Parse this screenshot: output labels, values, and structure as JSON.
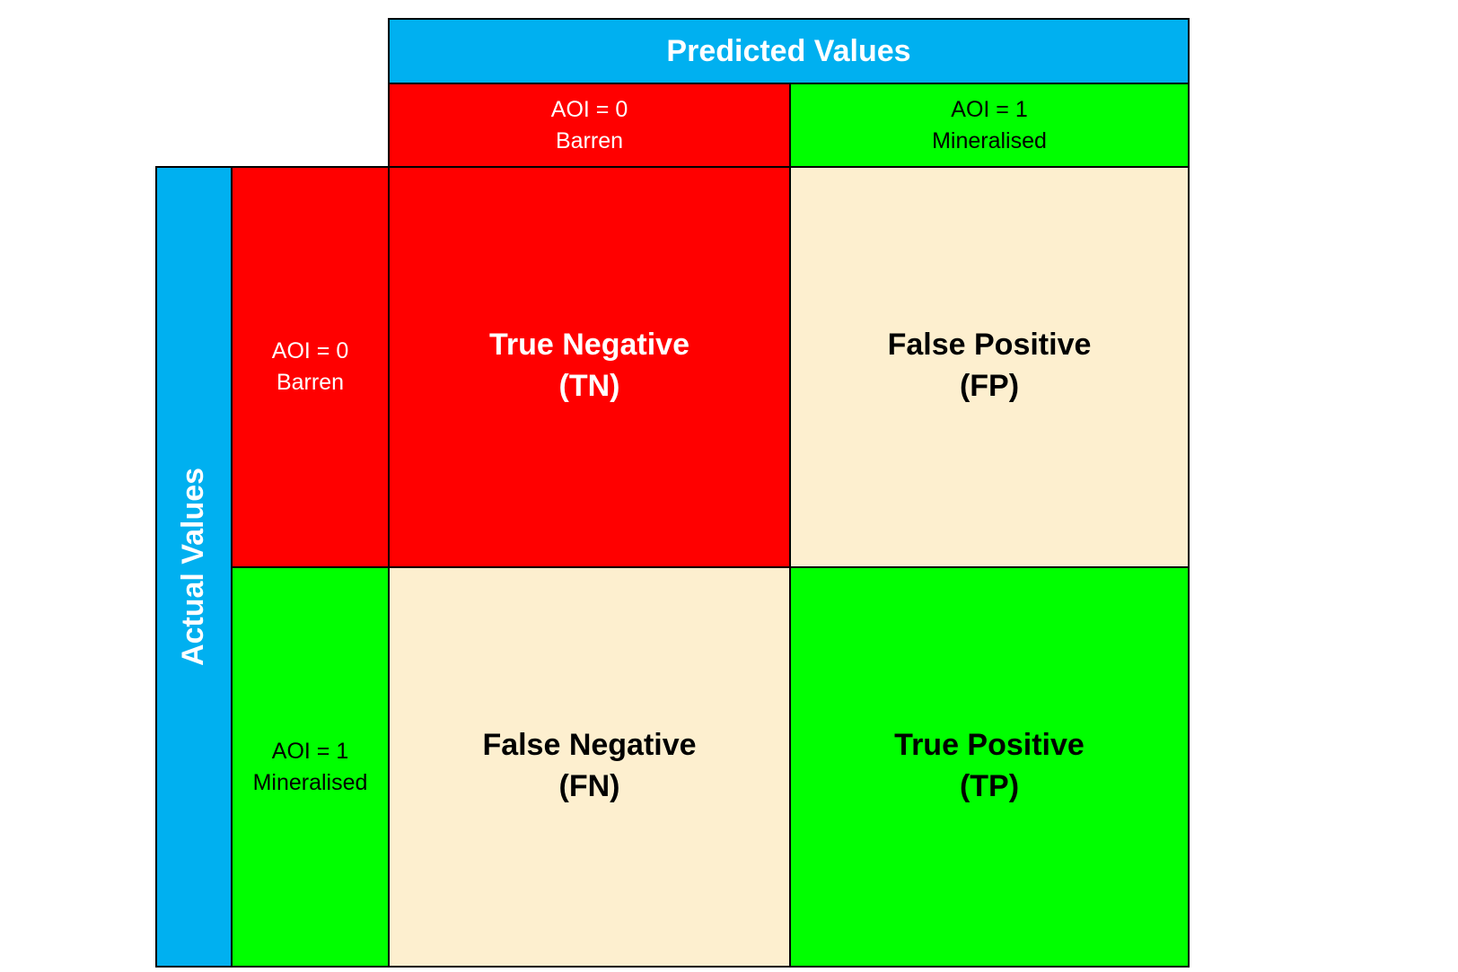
{
  "headers": {
    "predicted": "Predicted Values",
    "actual": "Actual Values"
  },
  "predicted_labels": [
    {
      "line1": "AOI = 0",
      "line2": "Barren"
    },
    {
      "line1": "AOI = 1",
      "line2": "Mineralised"
    }
  ],
  "actual_labels": [
    {
      "line1": "AOI = 0",
      "line2": "Barren"
    },
    {
      "line1": "AOI = 1",
      "line2": "Mineralised"
    }
  ],
  "cells": {
    "tn": {
      "name": "True Negative",
      "abbr": "(TN)"
    },
    "fp": {
      "name": "False Positive",
      "abbr": "(FP)"
    },
    "fn": {
      "name": "False Negative",
      "abbr": "(FN)"
    },
    "tp": {
      "name": "True Positive",
      "abbr": "(TP)"
    }
  },
  "colors": {
    "header": "#00b0f0",
    "negative": "#ff0000",
    "positive": "#00ff00",
    "error": "#fdefcf",
    "border": "#000000"
  }
}
